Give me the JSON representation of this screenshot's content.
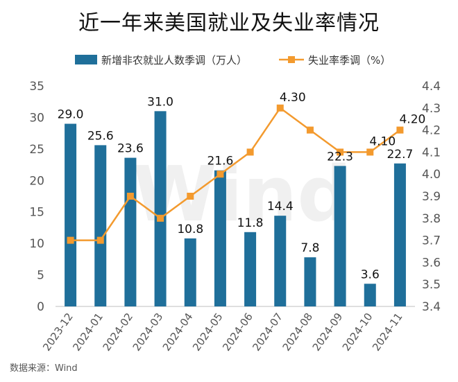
{
  "chart_data": {
    "type": "bar+line",
    "title": "近一年来美国就业及失业率情况",
    "source": "数据来源：Wind",
    "watermark": "Wind",
    "legend_position": "top",
    "grid": false,
    "categories": [
      "2023-12",
      "2024-01",
      "2024-02",
      "2024-03",
      "2024-04",
      "2024-05",
      "2024-06",
      "2024-07",
      "2024-08",
      "2024-09",
      "2024-10",
      "2024-11"
    ],
    "series": [
      {
        "name": "新增非农就业人数季调（万人）",
        "type": "bar",
        "axis": "left",
        "color": "#1f6f9a",
        "values": [
          29.0,
          25.6,
          23.6,
          31.0,
          10.8,
          21.6,
          11.8,
          14.4,
          7.8,
          22.3,
          3.6,
          22.7
        ],
        "labels": [
          "29.0",
          "25.6",
          "23.6",
          "31.0",
          "10.8",
          "21.6",
          "11.8",
          "14.4",
          "7.8",
          "22.3",
          "3.6",
          "22.7"
        ]
      },
      {
        "name": "失业率季调（%）",
        "type": "line",
        "axis": "right",
        "color": "#f39a2e",
        "values": [
          3.7,
          3.7,
          3.9,
          3.8,
          3.9,
          4.0,
          4.1,
          4.3,
          4.2,
          4.1,
          4.1,
          4.2
        ],
        "labels": [
          "",
          "",
          "",
          "",
          "",
          "",
          "",
          "4.30",
          "",
          "",
          "4.10",
          "4.20"
        ]
      }
    ],
    "y_left": {
      "min": 0,
      "max": 35,
      "ticks": [
        "0",
        "5",
        "10",
        "15",
        "20",
        "25",
        "30",
        "35"
      ]
    },
    "y_right": {
      "min": 3.4,
      "max": 4.4,
      "ticks": [
        "3.4",
        "3.5",
        "3.6",
        "3.7",
        "3.8",
        "3.9",
        "4.0",
        "4.1",
        "4.2",
        "4.3",
        "4.4"
      ]
    }
  }
}
